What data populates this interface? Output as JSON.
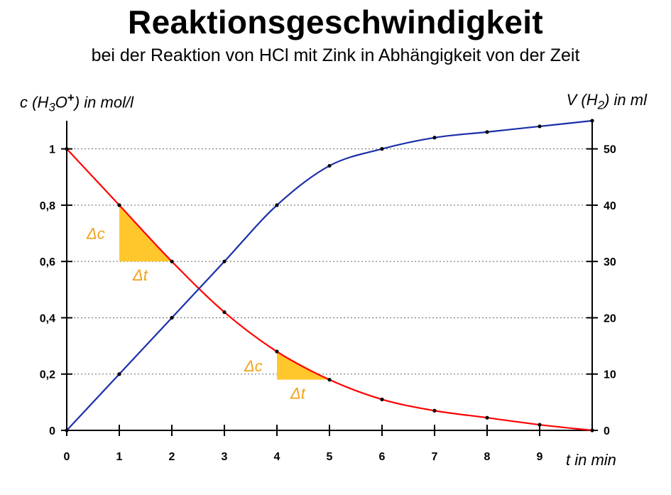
{
  "header": {
    "title": "Reaktionsgeschwindigkeit",
    "subtitle": "bei der Reaktion von HCl mit Zink in Abhängigkeit von der Zeit"
  },
  "chart_data": {
    "type": "line",
    "title": "Reaktionsgeschwindigkeit",
    "subtitle": "bei der Reaktion von HCl mit Zink in Abhängigkeit von der Zeit",
    "xlabel": "t in min",
    "ylabel_left": {
      "prefix": "c (H",
      "sub": "3",
      "mid": "O",
      "sup": "+",
      "suffix": ") in mol/l"
    },
    "ylabel_right": {
      "prefix": "V (H",
      "sub": "2",
      "suffix": ") in ml"
    },
    "xlim": [
      0,
      10
    ],
    "ylim_left": [
      0,
      1.1
    ],
    "ylim_right": [
      0,
      55
    ],
    "x_ticks": [
      "0",
      "1",
      "2",
      "3",
      "4",
      "5",
      "6",
      "7",
      "8",
      "9"
    ],
    "y_ticks_left": [
      "0",
      "0,2",
      "0,4",
      "0,6",
      "0,8",
      "1"
    ],
    "y_ticks_right": [
      "0",
      "10",
      "20",
      "30",
      "40",
      "50"
    ],
    "grid": "horizontal dotted",
    "series": [
      {
        "axis": "left",
        "color": "#ff0000",
        "x": [
          0,
          1,
          2,
          3,
          4,
          5,
          6,
          7,
          8,
          9,
          10
        ],
        "values": [
          1.0,
          0.8,
          0.6,
          0.42,
          0.28,
          0.18,
          0.11,
          0.07,
          0.045,
          0.02,
          0
        ]
      },
      {
        "axis": "right",
        "color": "#1a2faa",
        "x": [
          0,
          1,
          2,
          3,
          4,
          5,
          6,
          7,
          8,
          9,
          10
        ],
        "values": [
          0,
          10,
          20,
          30,
          40,
          47,
          50,
          52,
          53,
          54,
          55
        ]
      }
    ],
    "annotations": [
      {
        "label_c": "Δc",
        "label_t": "Δt",
        "x": [
          1,
          2
        ],
        "c": [
          0.8,
          0.6
        ],
        "color": "#ffc72c"
      },
      {
        "label_c": "Δc",
        "label_t": "Δt",
        "x": [
          4,
          5
        ],
        "c": [
          0.28,
          0.18
        ],
        "color": "#ffc72c"
      }
    ]
  }
}
